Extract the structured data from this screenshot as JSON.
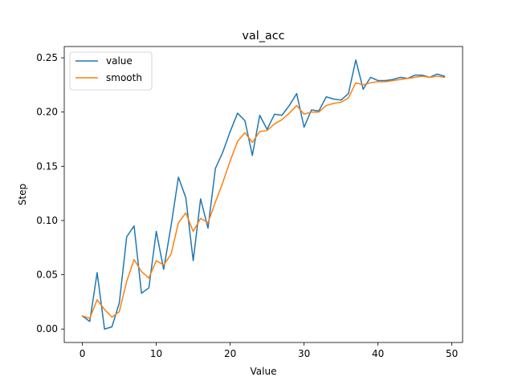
{
  "chart_data": {
    "type": "line",
    "title": "val_acc",
    "xlabel": "Value",
    "ylabel": "Step",
    "xlim": [
      -2.45,
      51.45
    ],
    "ylim": [
      -0.0124,
      0.2604
    ],
    "xticks": [
      0,
      10,
      20,
      30,
      40,
      50
    ],
    "yticks": [
      0.0,
      0.05,
      0.1,
      0.15,
      0.2,
      0.25
    ],
    "ytick_labels": [
      "0.00",
      "0.05",
      "0.10",
      "0.15",
      "0.20",
      "0.25"
    ],
    "grid": false,
    "legend_position": "top-left",
    "x": [
      0,
      1,
      2,
      3,
      4,
      5,
      6,
      7,
      8,
      9,
      10,
      11,
      12,
      13,
      14,
      15,
      16,
      17,
      18,
      19,
      20,
      21,
      22,
      23,
      24,
      25,
      26,
      27,
      28,
      29,
      30,
      31,
      32,
      33,
      34,
      35,
      36,
      37,
      38,
      39,
      40,
      41,
      42,
      43,
      44,
      45,
      46,
      47,
      48,
      49
    ],
    "series": [
      {
        "name": "value",
        "color": "#1f77b4",
        "values": [
          0.012,
          0.007,
          0.052,
          0.0,
          0.002,
          0.024,
          0.085,
          0.095,
          0.033,
          0.038,
          0.09,
          0.055,
          0.095,
          0.14,
          0.121,
          0.063,
          0.12,
          0.093,
          0.148,
          0.163,
          0.182,
          0.199,
          0.192,
          0.16,
          0.197,
          0.184,
          0.198,
          0.197,
          0.206,
          0.217,
          0.186,
          0.202,
          0.201,
          0.214,
          0.212,
          0.211,
          0.217,
          0.248,
          0.221,
          0.232,
          0.229,
          0.229,
          0.23,
          0.232,
          0.231,
          0.234,
          0.234,
          0.232,
          0.235,
          0.233
        ]
      },
      {
        "name": "smooth",
        "color": "#ff7f0e",
        "values": [
          0.012,
          0.01,
          0.027,
          0.018,
          0.011,
          0.016,
          0.044,
          0.064,
          0.053,
          0.047,
          0.063,
          0.059,
          0.069,
          0.098,
          0.107,
          0.09,
          0.102,
          0.098,
          0.117,
          0.135,
          0.155,
          0.173,
          0.181,
          0.172,
          0.182,
          0.183,
          0.189,
          0.193,
          0.199,
          0.206,
          0.198,
          0.2,
          0.2,
          0.206,
          0.208,
          0.209,
          0.213,
          0.227,
          0.225,
          0.227,
          0.228,
          0.228,
          0.229,
          0.23,
          0.231,
          0.232,
          0.233,
          0.232,
          0.233,
          0.232
        ]
      }
    ]
  }
}
